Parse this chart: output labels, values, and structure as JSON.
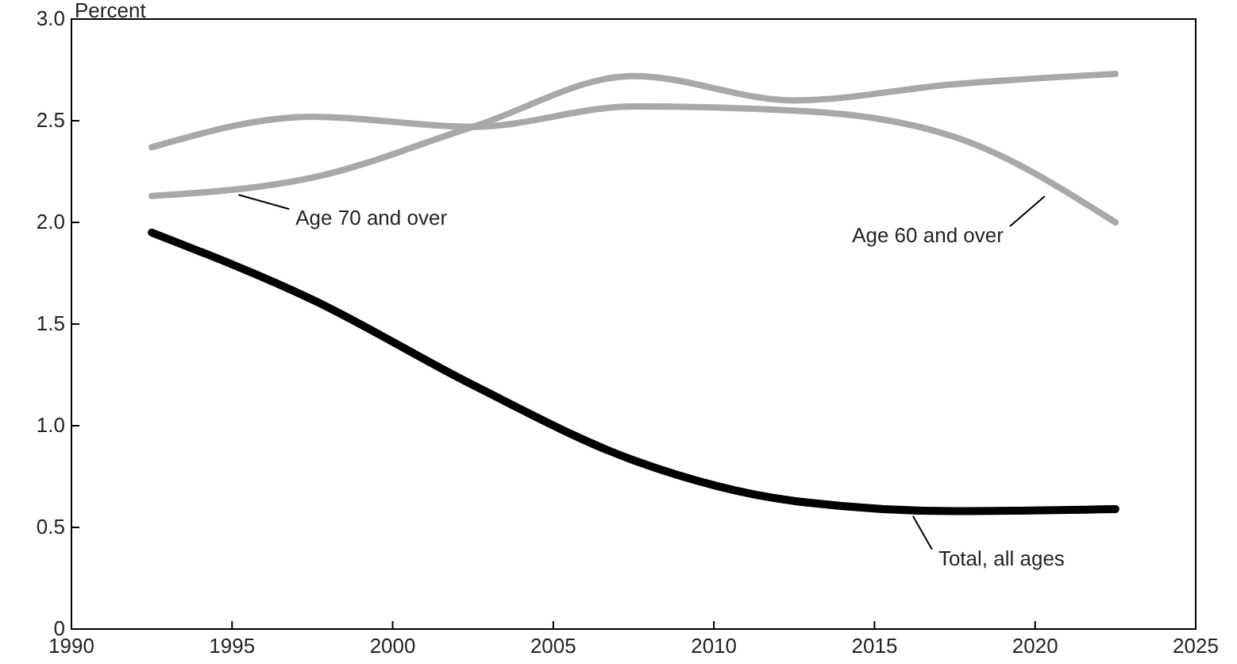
{
  "chart_data": {
    "type": "line",
    "ylabel": "Percent",
    "x": [
      1992.5,
      1997.5,
      2002.5,
      2007.5,
      2012.5,
      2017.5,
      2022.5
    ],
    "series": [
      {
        "name": "Age 70 and over",
        "color": "#a8a8a8",
        "values": [
          2.13,
          2.22,
          2.47,
          2.72,
          2.6,
          2.68,
          2.73
        ]
      },
      {
        "name": "Age 60 and over",
        "color": "#a8a8a8",
        "values": [
          2.37,
          2.52,
          2.47,
          2.57,
          2.55,
          2.42,
          2.0
        ]
      },
      {
        "name": "Total, all ages",
        "color": "#000000",
        "values": [
          1.95,
          1.62,
          1.2,
          0.83,
          0.63,
          0.58,
          0.59
        ]
      }
    ],
    "xlim": [
      1990,
      2025
    ],
    "xticks": [
      1990,
      1995,
      2000,
      2005,
      2010,
      2015,
      2020,
      2025
    ],
    "ylim": [
      0,
      3
    ],
    "yticks": [
      0,
      {
        "value": 0.5,
        "label": "0.5"
      },
      {
        "value": 1,
        "label": "1.0"
      },
      {
        "value": 1.5,
        "label": "1.5"
      },
      {
        "value": 2,
        "label": "2.0"
      },
      {
        "value": 2.5,
        "label": "2.5"
      },
      {
        "value": 3,
        "label": "3.0"
      }
    ],
    "grid": false,
    "line_style": "solid"
  }
}
